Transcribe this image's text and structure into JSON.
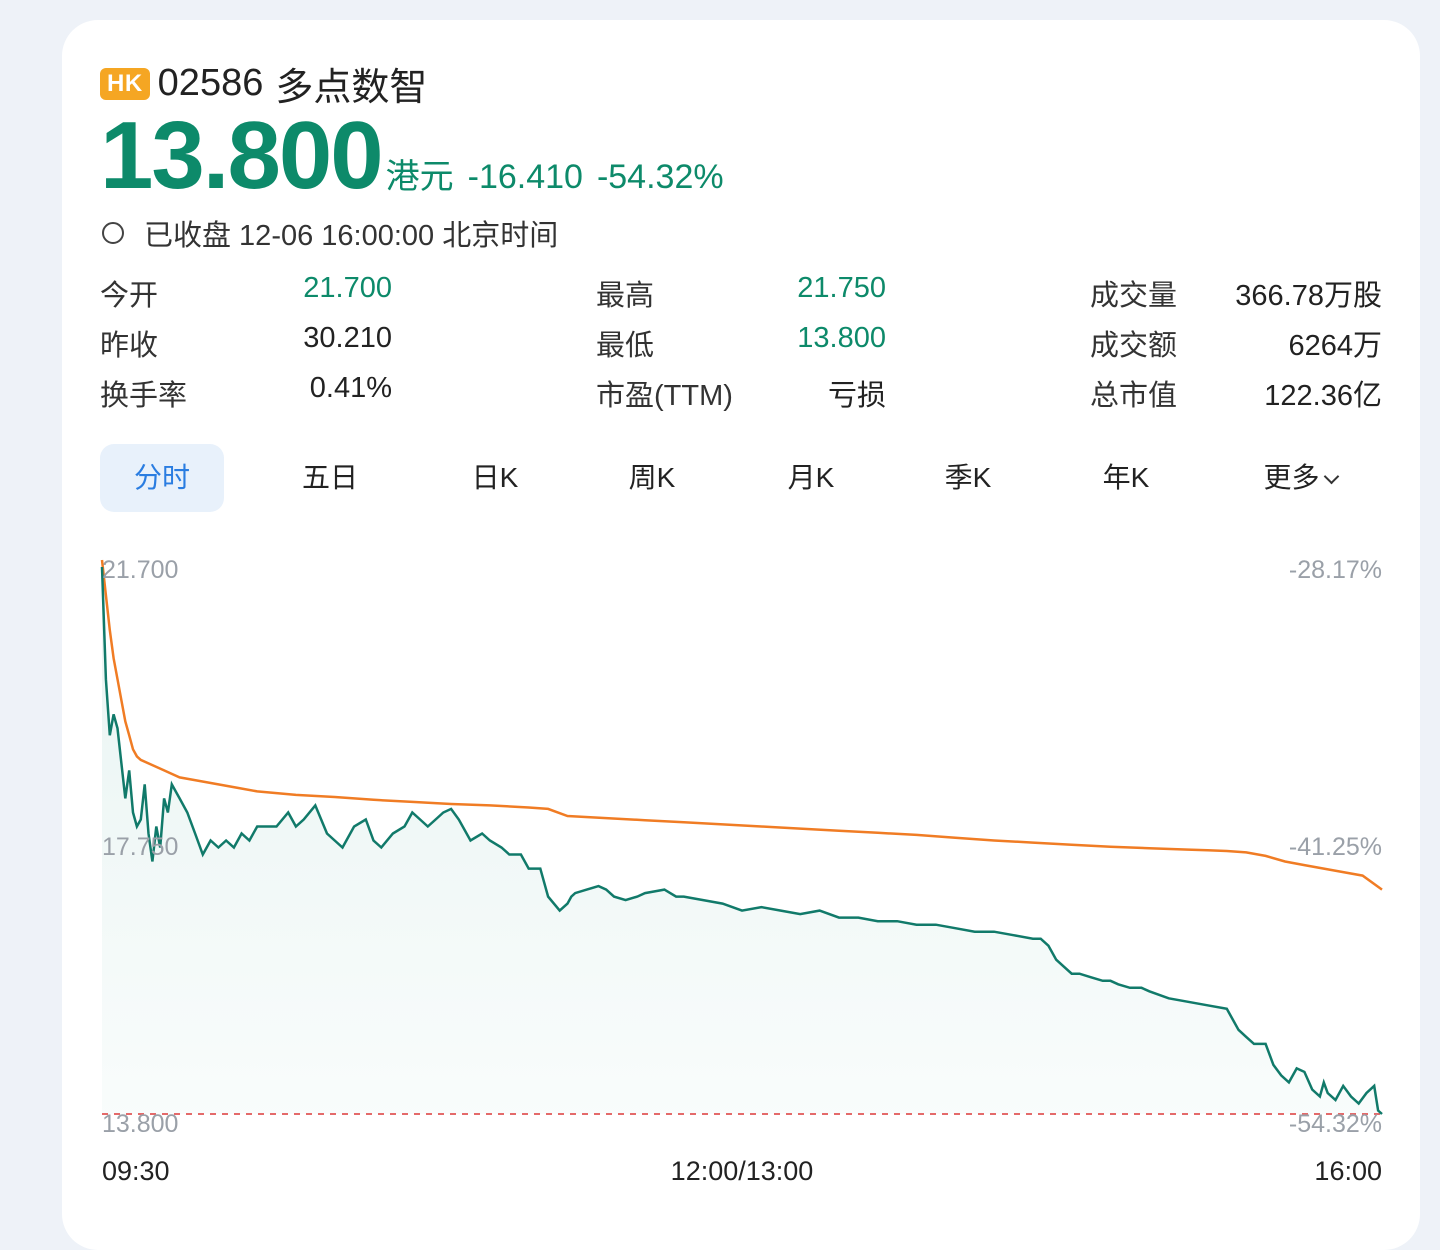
{
  "market_badge": "HK",
  "stock": {
    "code": "02586",
    "name": "多点数智"
  },
  "price": {
    "value": "13.800",
    "unit": "港元",
    "change": "-16.410",
    "change_pct": "-54.32%"
  },
  "status": "已收盘 12-06 16:00:00 北京时间",
  "stats": [
    [
      {
        "label": "今开",
        "value": "21.700"
      },
      {
        "label": "最高",
        "value": "21.750"
      },
      {
        "label": "成交量",
        "value": "366.78万股"
      }
    ],
    [
      {
        "label": "昨收",
        "value": "30.210"
      },
      {
        "label": "最低",
        "value": "13.800"
      },
      {
        "label": "成交额",
        "value": "6264万"
      }
    ],
    [
      {
        "label": "换手率",
        "value": "0.41%"
      },
      {
        "label": "市盈(TTM)",
        "value": "亏损"
      },
      {
        "label": "总市值",
        "value": "122.36亿"
      }
    ]
  ],
  "tabs": [
    "分时",
    "五日",
    "日K",
    "周K",
    "月K",
    "季K",
    "年K",
    "更多"
  ],
  "colors": {
    "price_line": "#117a6a",
    "avg_line": "#f07c24",
    "green": "#0d8a6a",
    "fill": "#e6f3f1",
    "low_ref": "#e46a6a"
  },
  "chart_data": {
    "type": "line",
    "y_labels_left": [
      "21.700",
      "17.750",
      "13.800"
    ],
    "y_labels_right": [
      "-28.17%",
      "-41.25%",
      "-54.32%"
    ],
    "x_labels": [
      "09:30",
      "12:00/13:00",
      "16:00"
    ],
    "ylim": [
      13.8,
      21.7
    ],
    "x_range": [
      0,
      330
    ],
    "series": [
      {
        "x": [
          0,
          1,
          2,
          3,
          4,
          5,
          6,
          7,
          8,
          9,
          10,
          11,
          12,
          13,
          14,
          15,
          16,
          17,
          18,
          20,
          22,
          24,
          26,
          28,
          30,
          32,
          34,
          36,
          38,
          40,
          45,
          48,
          50,
          52,
          55,
          58,
          60,
          62,
          65,
          68,
          70,
          72,
          75,
          78,
          80,
          82,
          84,
          86,
          88,
          90,
          92,
          95,
          98,
          100,
          103,
          105,
          108,
          110,
          113,
          115,
          118,
          120,
          121,
          122,
          125,
          128,
          130,
          132,
          135,
          138,
          140,
          145,
          148,
          150,
          155,
          160,
          165,
          170,
          175,
          180,
          185,
          190,
          195,
          200,
          205,
          210,
          215,
          220,
          225,
          230,
          235,
          240,
          242,
          244,
          246,
          248,
          250,
          252,
          255,
          258,
          260,
          262,
          265,
          268,
          270,
          275,
          280,
          285,
          290,
          293,
          295,
          297,
          300,
          302,
          304,
          306,
          308,
          310,
          312,
          314,
          315,
          316,
          318,
          320,
          322,
          324,
          326,
          328,
          329,
          330
        ],
        "values": [
          21.6,
          20.0,
          19.2,
          19.5,
          19.3,
          18.8,
          18.3,
          18.7,
          18.1,
          17.9,
          18.0,
          18.5,
          17.8,
          17.4,
          17.9,
          17.6,
          18.3,
          18.1,
          18.5,
          18.3,
          18.1,
          17.8,
          17.5,
          17.7,
          17.6,
          17.7,
          17.6,
          17.8,
          17.7,
          17.9,
          17.9,
          18.1,
          17.9,
          18.0,
          18.2,
          17.8,
          17.7,
          17.6,
          17.9,
          18.0,
          17.7,
          17.6,
          17.8,
          17.9,
          18.1,
          18.0,
          17.9,
          18.0,
          18.1,
          18.15,
          18.0,
          17.7,
          17.8,
          17.7,
          17.6,
          17.5,
          17.5,
          17.3,
          17.3,
          16.9,
          16.7,
          16.8,
          16.9,
          16.95,
          17.0,
          17.05,
          17.0,
          16.9,
          16.85,
          16.9,
          16.95,
          17.0,
          16.9,
          16.9,
          16.85,
          16.8,
          16.7,
          16.75,
          16.7,
          16.65,
          16.7,
          16.6,
          16.6,
          16.55,
          16.55,
          16.5,
          16.5,
          16.45,
          16.4,
          16.4,
          16.35,
          16.3,
          16.3,
          16.2,
          16.0,
          15.9,
          15.8,
          15.8,
          15.75,
          15.7,
          15.7,
          15.65,
          15.6,
          15.6,
          15.55,
          15.45,
          15.4,
          15.35,
          15.3,
          15.0,
          14.9,
          14.8,
          14.8,
          14.5,
          14.35,
          14.25,
          14.45,
          14.4,
          14.15,
          14.05,
          14.25,
          14.1,
          14.0,
          14.2,
          14.05,
          13.95,
          14.1,
          14.2,
          13.85,
          13.8
        ]
      },
      {
        "x": [
          0,
          1,
          2,
          3,
          4,
          5,
          6,
          7,
          8,
          9,
          10,
          12,
          14,
          16,
          18,
          20,
          25,
          30,
          35,
          40,
          50,
          60,
          70,
          80,
          90,
          100,
          110,
          115,
          120,
          130,
          140,
          150,
          160,
          170,
          180,
          190,
          200,
          210,
          220,
          230,
          240,
          250,
          260,
          270,
          280,
          285,
          290,
          295,
          300,
          305,
          310,
          315,
          320,
          325,
          330
        ],
        "values": [
          21.7,
          21.2,
          20.7,
          20.3,
          20.0,
          19.7,
          19.4,
          19.2,
          19.0,
          18.9,
          18.85,
          18.8,
          18.75,
          18.7,
          18.65,
          18.6,
          18.55,
          18.5,
          18.45,
          18.4,
          18.35,
          18.32,
          18.28,
          18.25,
          18.22,
          18.2,
          18.17,
          18.15,
          18.05,
          18.02,
          17.99,
          17.96,
          17.93,
          17.9,
          17.87,
          17.84,
          17.81,
          17.78,
          17.74,
          17.7,
          17.67,
          17.64,
          17.61,
          17.59,
          17.57,
          17.56,
          17.55,
          17.53,
          17.48,
          17.4,
          17.35,
          17.3,
          17.25,
          17.2,
          17.0
        ]
      }
    ]
  }
}
